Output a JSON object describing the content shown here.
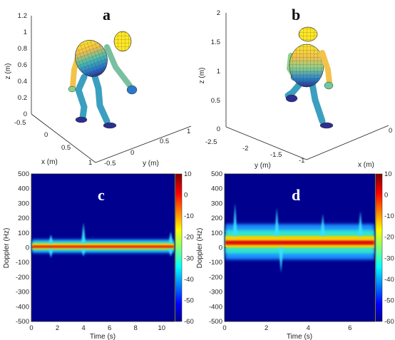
{
  "chart_data": [
    {
      "type": "3d-figure",
      "label": "a",
      "xlabel": "x (m)",
      "ylabel": "y (m)",
      "zlabel": "z (m)",
      "x_ticks": [
        "-0.5",
        "0",
        "0.5",
        "1"
      ],
      "y_ticks": [
        "-0.5",
        "0",
        "0.5",
        "1"
      ],
      "z_ticks": [
        "0",
        "0.2",
        "0.4",
        "0.6",
        "0.8",
        "1",
        "1.2"
      ],
      "xlim": [
        -0.5,
        1
      ],
      "ylim": [
        -0.5,
        1
      ],
      "zlim": [
        0,
        1.2
      ]
    },
    {
      "type": "3d-figure",
      "label": "b",
      "xlabel": "x (m)",
      "ylabel": "y (m)",
      "zlabel": "z (m)",
      "x_ticks": [
        "0"
      ],
      "y_ticks": [
        "-2.5",
        "-2",
        "-1.5",
        "-1"
      ],
      "z_ticks": [
        "0",
        "0.5",
        "1",
        "1.5",
        "2"
      ],
      "zlim": [
        0,
        2
      ]
    },
    {
      "type": "heatmap",
      "label": "c",
      "xlabel": "Time (s)",
      "ylabel": "Doppler (Hz)",
      "xlim": [
        0,
        11
      ],
      "ylim": [
        -500,
        500
      ],
      "x_ticks": [
        "0",
        "2",
        "4",
        "6",
        "8",
        "10"
      ],
      "y_ticks": [
        "-500",
        "-400",
        "-300",
        "-200",
        "-100",
        "0",
        "100",
        "200",
        "300",
        "400",
        "500"
      ],
      "colorbar": {
        "range": [
          -60,
          10
        ],
        "ticks": [
          "10",
          "0",
          "-10",
          "-20",
          "-30",
          "-40",
          "-50",
          "-60"
        ]
      },
      "band": {
        "center_hz": 10,
        "core_halfwidth_hz": 20,
        "spread_halfwidth_hz": 45
      },
      "spikes": [
        {
          "t": 4.0,
          "top_hz": 170,
          "bottom_hz": -60
        },
        {
          "t": 1.5,
          "top_hz": 90,
          "bottom_hz": -70
        },
        {
          "t": 10.7,
          "top_hz": 110,
          "bottom_hz": -60
        }
      ]
    },
    {
      "type": "heatmap",
      "label": "d",
      "xlabel": "Time (s)",
      "ylabel": "Doppler (Hz)",
      "xlim": [
        0,
        7.2
      ],
      "ylim": [
        -500,
        500
      ],
      "x_ticks": [
        "0",
        "2",
        "4",
        "6"
      ],
      "y_ticks": [
        "-500",
        "-400",
        "-300",
        "-200",
        "-100",
        "0",
        "100",
        "200",
        "300",
        "400",
        "500"
      ],
      "colorbar": {
        "range": [
          -60,
          10
        ],
        "ticks": [
          "10",
          "0",
          "-10",
          "-20",
          "-30",
          "-40",
          "-50",
          "-60"
        ]
      },
      "band": {
        "center_hz": 40,
        "core_halfwidth_hz": 40,
        "spread_halfwidth_hz": 120
      },
      "bursts": [
        {
          "t": 0.5,
          "top_hz": 300
        },
        {
          "t": 2.5,
          "top_hz": 270
        },
        {
          "t": 2.7,
          "bottom_hz": -170
        },
        {
          "t": 4.7,
          "top_hz": 230
        },
        {
          "t": 6.5,
          "top_hz": 250
        }
      ]
    }
  ]
}
